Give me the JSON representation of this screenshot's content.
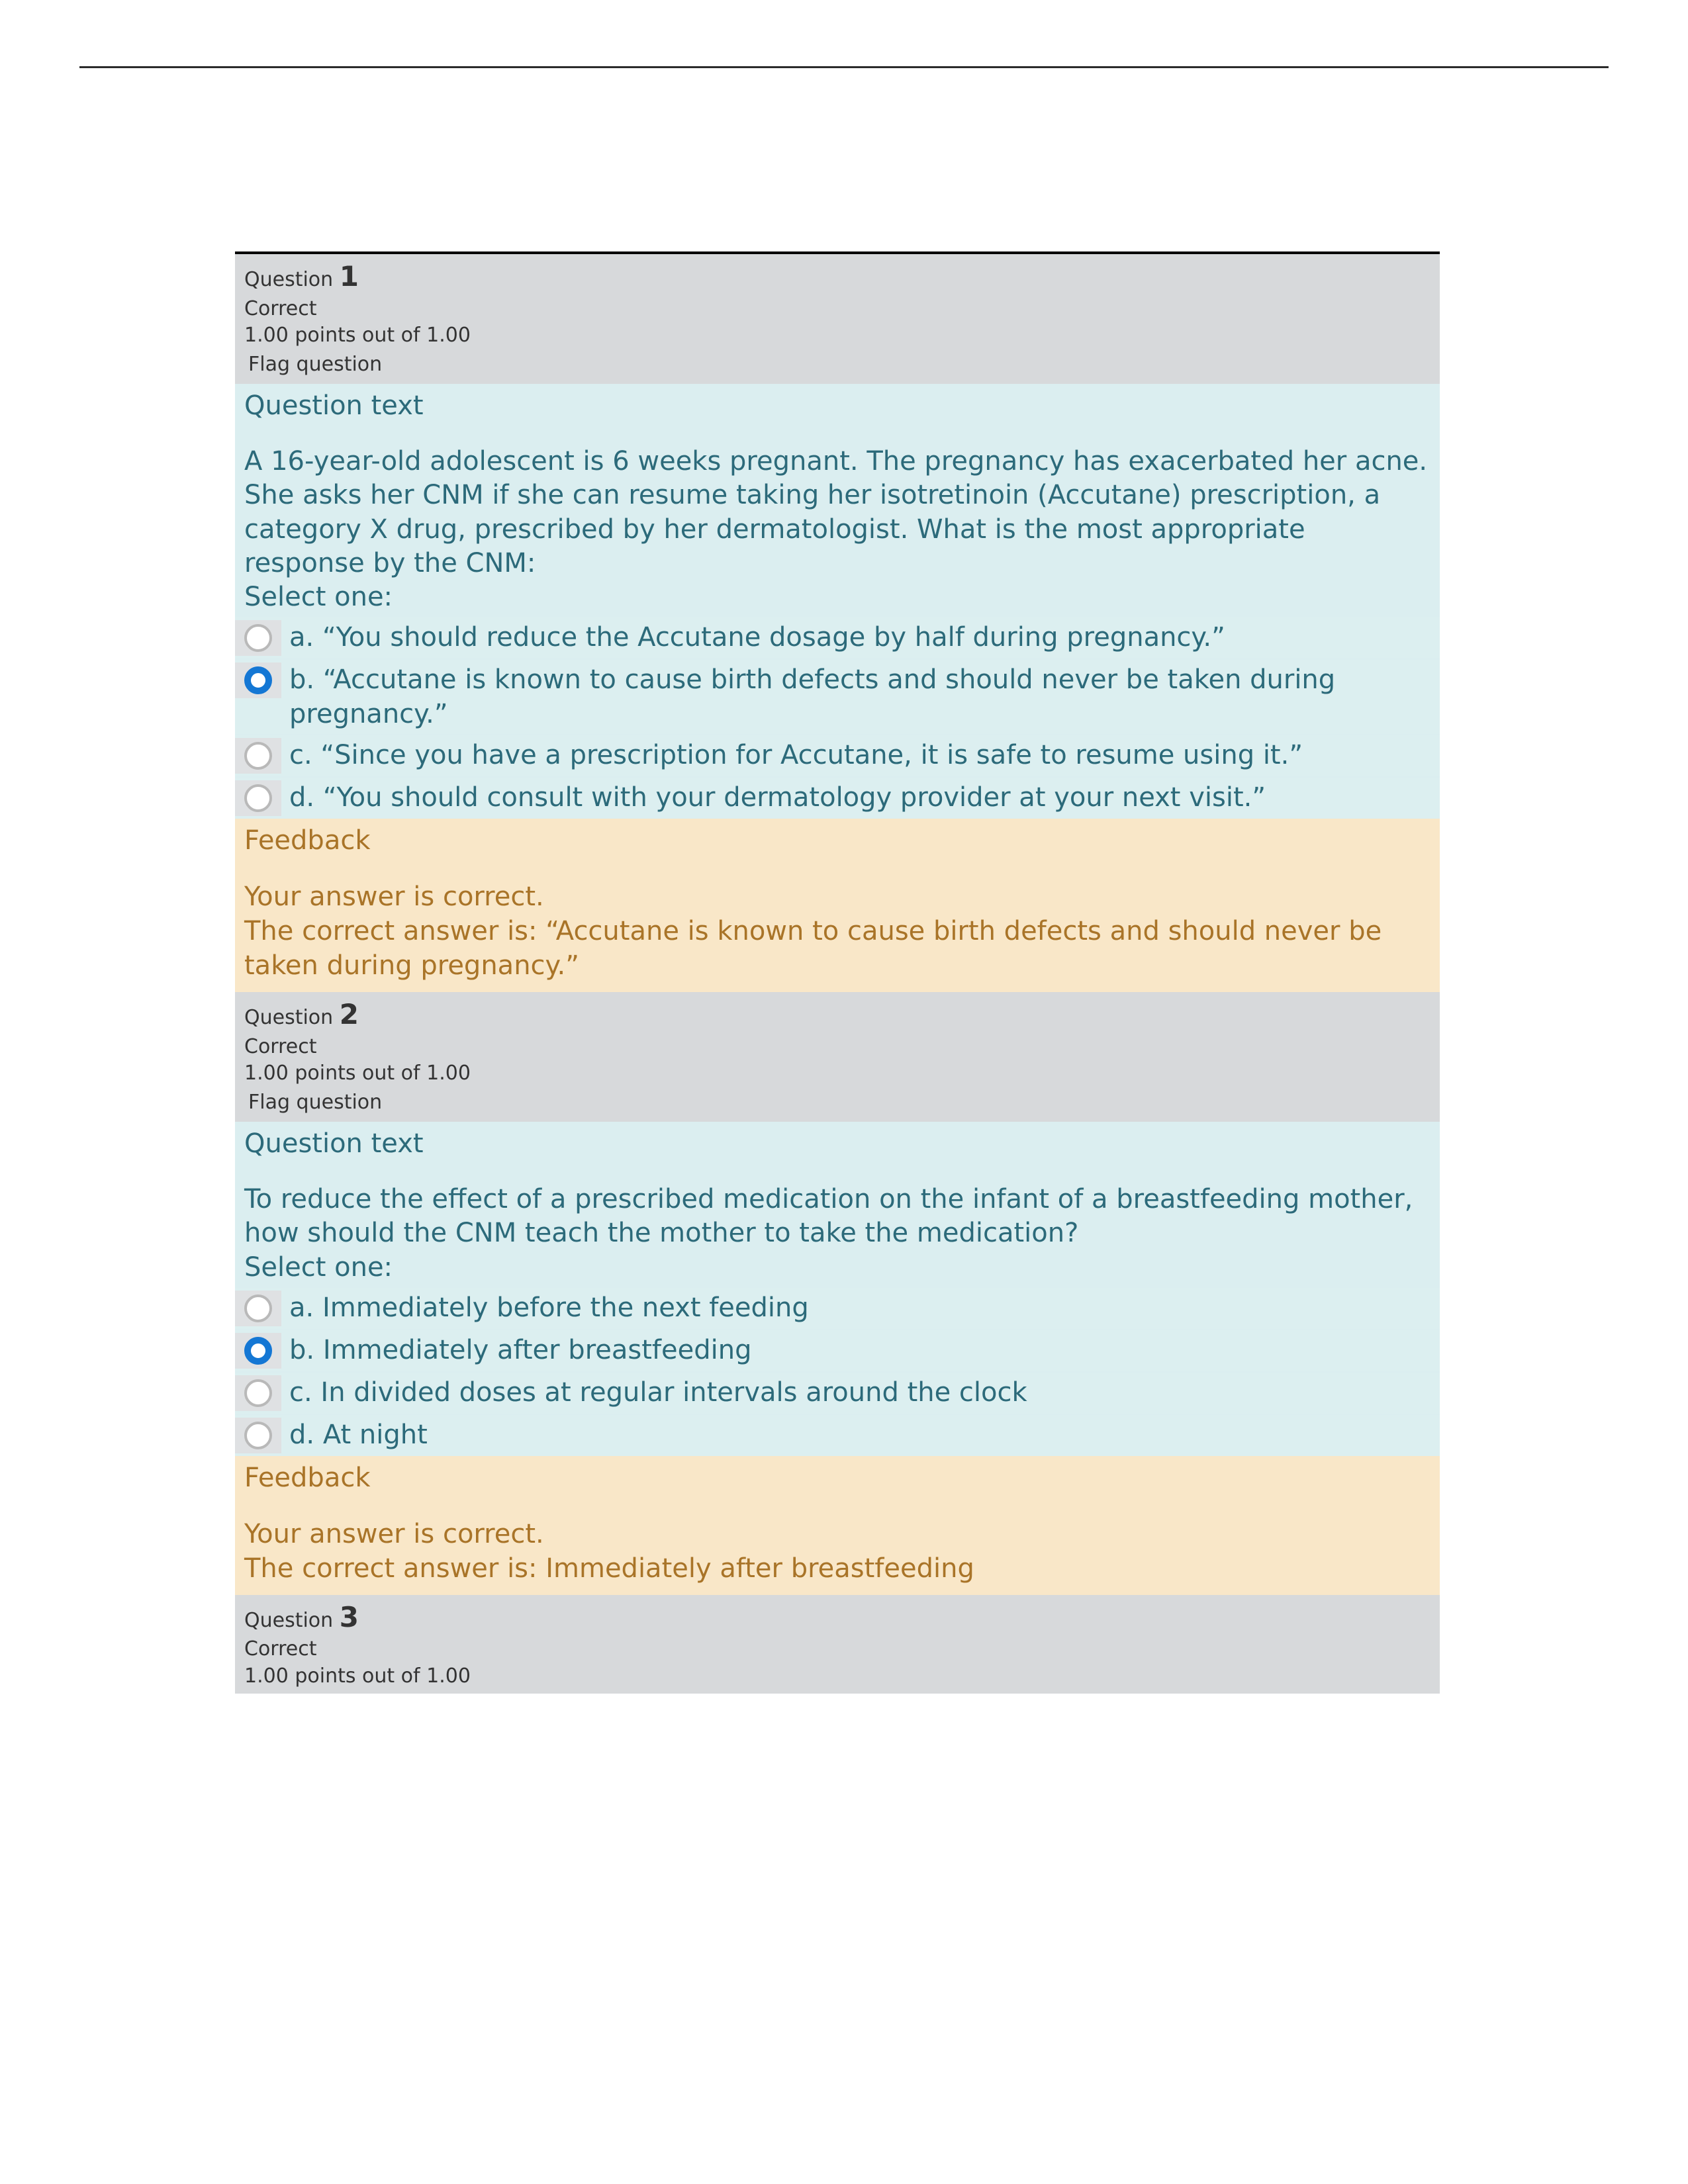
{
  "colors": {
    "page_bg": "#ffffff",
    "rule": "#2b2b2b",
    "header_bg": "#d7d9db",
    "header_text": "#333333",
    "body_bg": "#dbeef0",
    "body_text": "#2c6a7a",
    "radio_cell_bg": "#dfe1e3",
    "radio_border": "#b9b9b9",
    "radio_selected": "#1477d4",
    "feedback_bg": "#f9e7c8",
    "feedback_text": "#a97428"
  },
  "labels": {
    "question_word": "Question",
    "question_text_heading": "Question text",
    "select_one": "Select one:",
    "feedback_heading": "Feedback",
    "flag": "Flag question"
  },
  "questions": [
    {
      "number": "1",
      "status": "Correct",
      "points": "1.00 points out of 1.00",
      "prompt": "A 16-year-old adolescent is 6 weeks pregnant. The pregnancy has exacerbated her acne. She asks her CNM if she can resume taking her isotretinoin (Accutane) prescription, a category X drug, prescribed by her dermatologist. What is the most appropriate response by the CNM:",
      "options": {
        "a": "a. “You should reduce the Accutane dosage by half during pregnancy.”",
        "b": "b. “Accutane is known to cause birth defects and should never be taken during pregnancy.”",
        "c": "c. “Since you have a prescription for Accutane, it is safe to resume using it.”",
        "d": "d. “You should consult with your dermatology provider at your next visit.”"
      },
      "selected": "b",
      "feedback_lines": {
        "l1": "Your answer is correct.",
        "l2": "The correct answer is: “Accutane is known to cause birth defects and should never be taken during pregnancy.”"
      }
    },
    {
      "number": "2",
      "status": "Correct",
      "points": "1.00 points out of 1.00",
      "prompt": "To reduce the effect of a prescribed medication on the infant of a breastfeeding mother, how should the CNM teach the mother to take the medication?",
      "options": {
        "a": "a. Immediately before the next feeding",
        "b": "b. Immediately after breastfeeding",
        "c": "c. In divided doses at regular intervals around the clock",
        "d": "d. At night"
      },
      "selected": "b",
      "feedback_lines": {
        "l1": "Your answer is correct.",
        "l2": "The correct answer is: Immediately after breastfeeding"
      }
    },
    {
      "number": "3",
      "status": "Correct",
      "points": "1.00 points out of 1.00"
    }
  ]
}
